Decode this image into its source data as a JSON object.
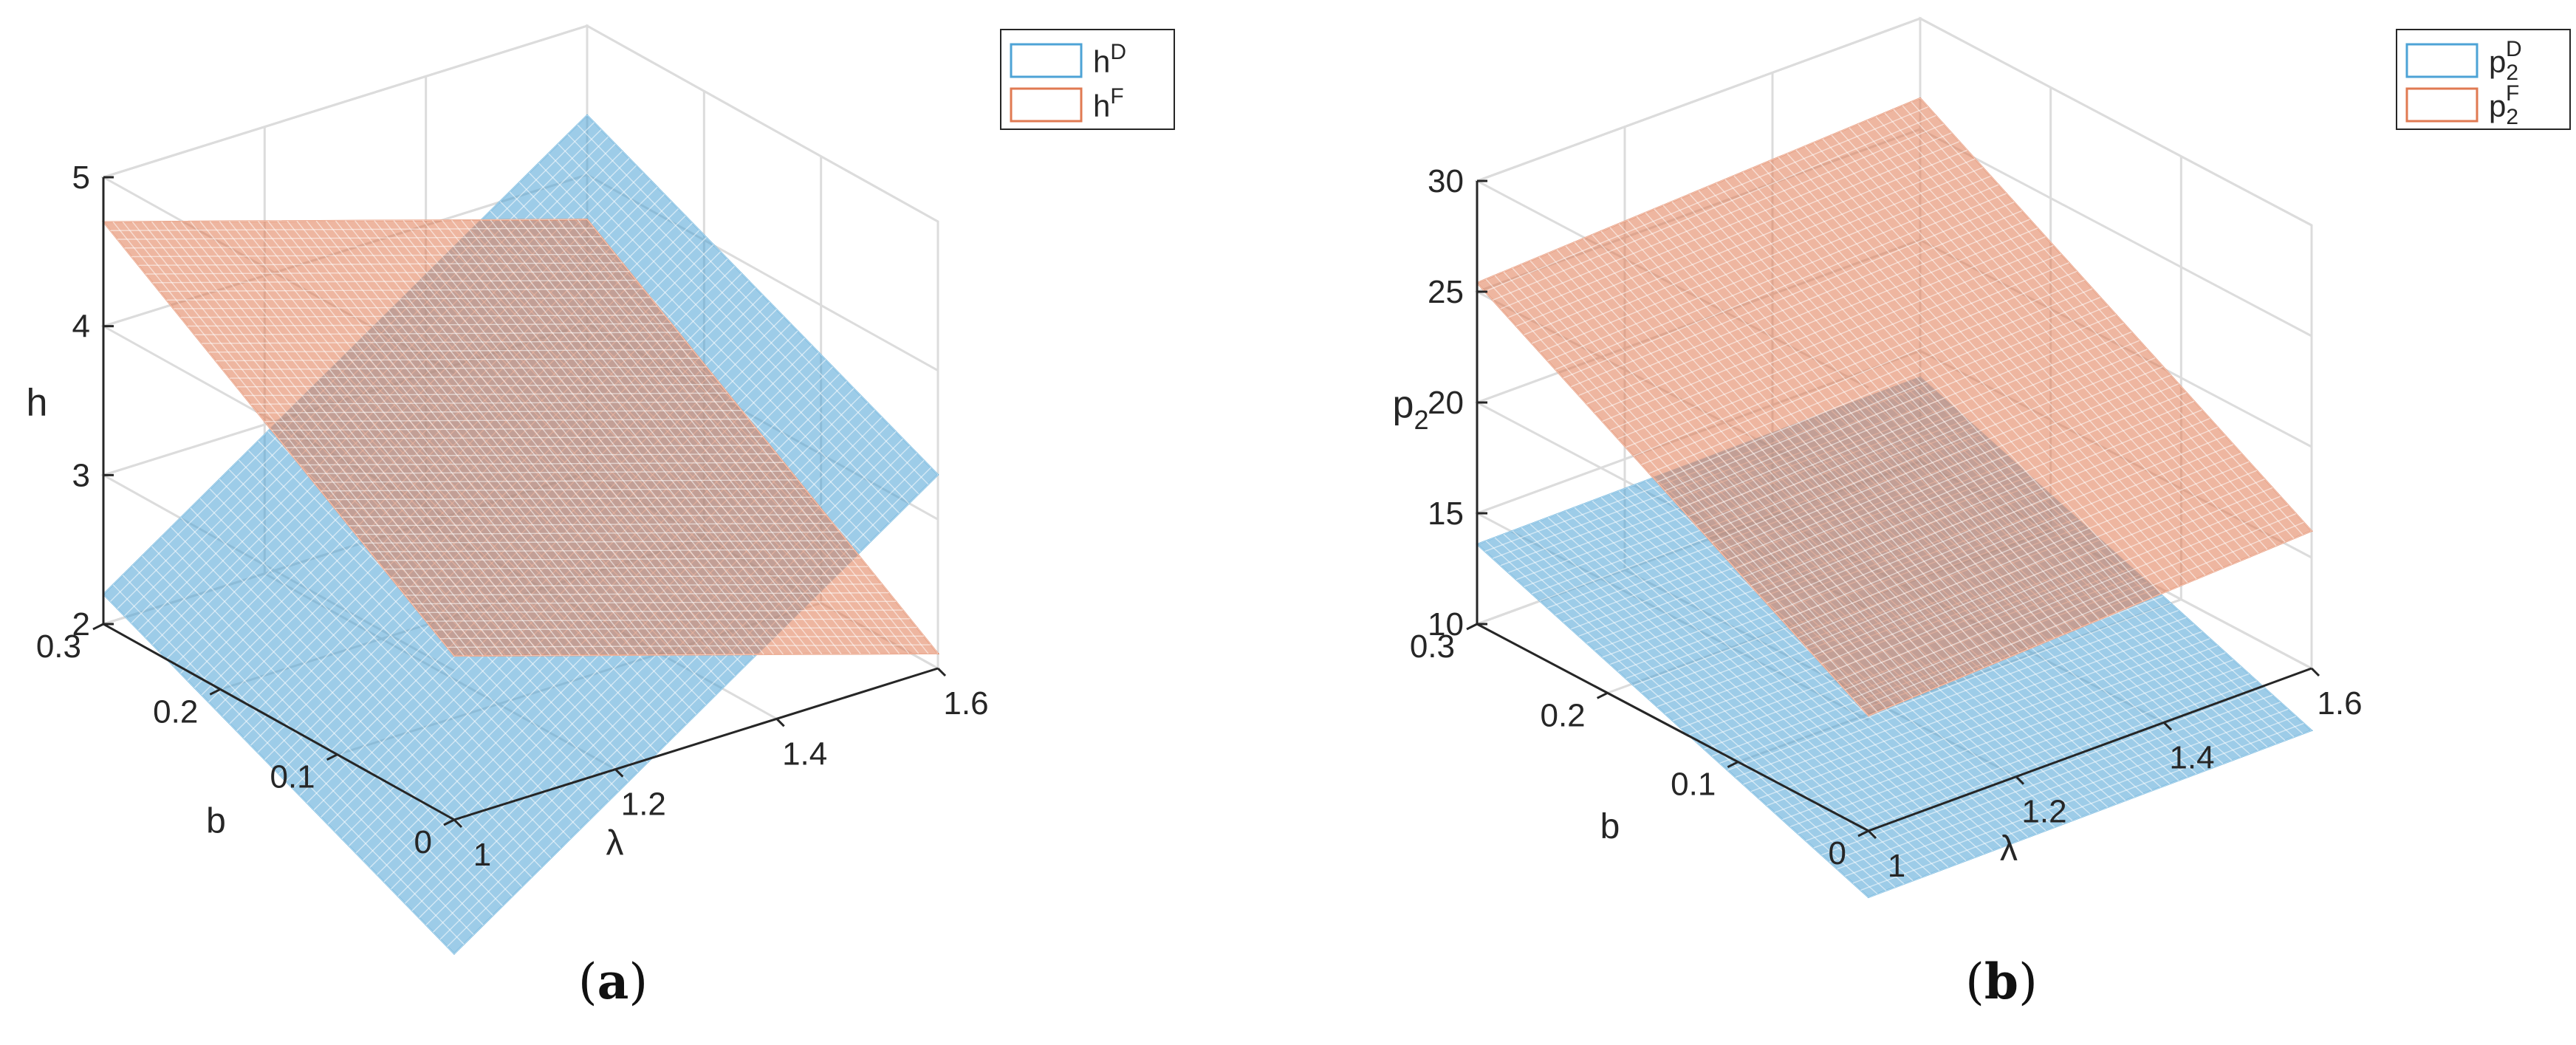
{
  "chart_data": [
    {
      "type": "surface3d",
      "panel_letter": "a",
      "zlabel": "h",
      "xlabel": "b",
      "ylabel": "λ",
      "xlim": [
        0,
        0.3
      ],
      "ylim": [
        1,
        1.6
      ],
      "zlim": [
        2,
        5
      ],
      "x_ticks": [
        "0",
        "0.1",
        "0.2",
        "0.3"
      ],
      "y_ticks": [
        "1",
        "1.2",
        "1.4",
        "1.6"
      ],
      "z_ticks": [
        "2",
        "3",
        "4",
        "5"
      ],
      "legend_position": "top-right",
      "series": [
        {
          "name": "h",
          "sup": "D",
          "sub": "",
          "color": "#4DA3D6",
          "corners": {
            "b0_l1": 1.1,
            "b0_l16": 3.3,
            "b03_l1": 2.2,
            "b03_l16": 4.4
          }
        },
        {
          "name": "h",
          "sup": "F",
          "sub": "",
          "color": "#E07A52",
          "corners": {
            "b0_l1": 3.1,
            "b0_l16": 2.1,
            "b03_l1": 4.7,
            "b03_l16": 3.7
          }
        }
      ]
    },
    {
      "type": "surface3d",
      "panel_letter": "b",
      "zlabel": "p",
      "zlabel_sub": "2",
      "xlabel": "b",
      "ylabel": "λ",
      "xlim": [
        0,
        0.3
      ],
      "ylim": [
        1,
        1.6
      ],
      "zlim": [
        10,
        30
      ],
      "x_ticks": [
        "0",
        "0.1",
        "0.2",
        "0.3"
      ],
      "y_ticks": [
        "1",
        "1.2",
        "1.4",
        "1.6"
      ],
      "z_ticks": [
        "10",
        "15",
        "20",
        "25",
        "30"
      ],
      "legend_position": "top-right",
      "series": [
        {
          "name": "p",
          "sup": "D",
          "sub": "2",
          "color": "#4DA3D6",
          "corners": {
            "b0_l1": 7.0,
            "b0_l16": 7.2,
            "b03_l1": 13.6,
            "b03_l16": 13.8
          }
        },
        {
          "name": "p",
          "sup": "F",
          "sub": "2",
          "color": "#E07A52",
          "corners": {
            "b0_l1": 15.2,
            "b0_l16": 16.2,
            "b03_l1": 25.4,
            "b03_l16": 26.4
          }
        }
      ]
    }
  ]
}
